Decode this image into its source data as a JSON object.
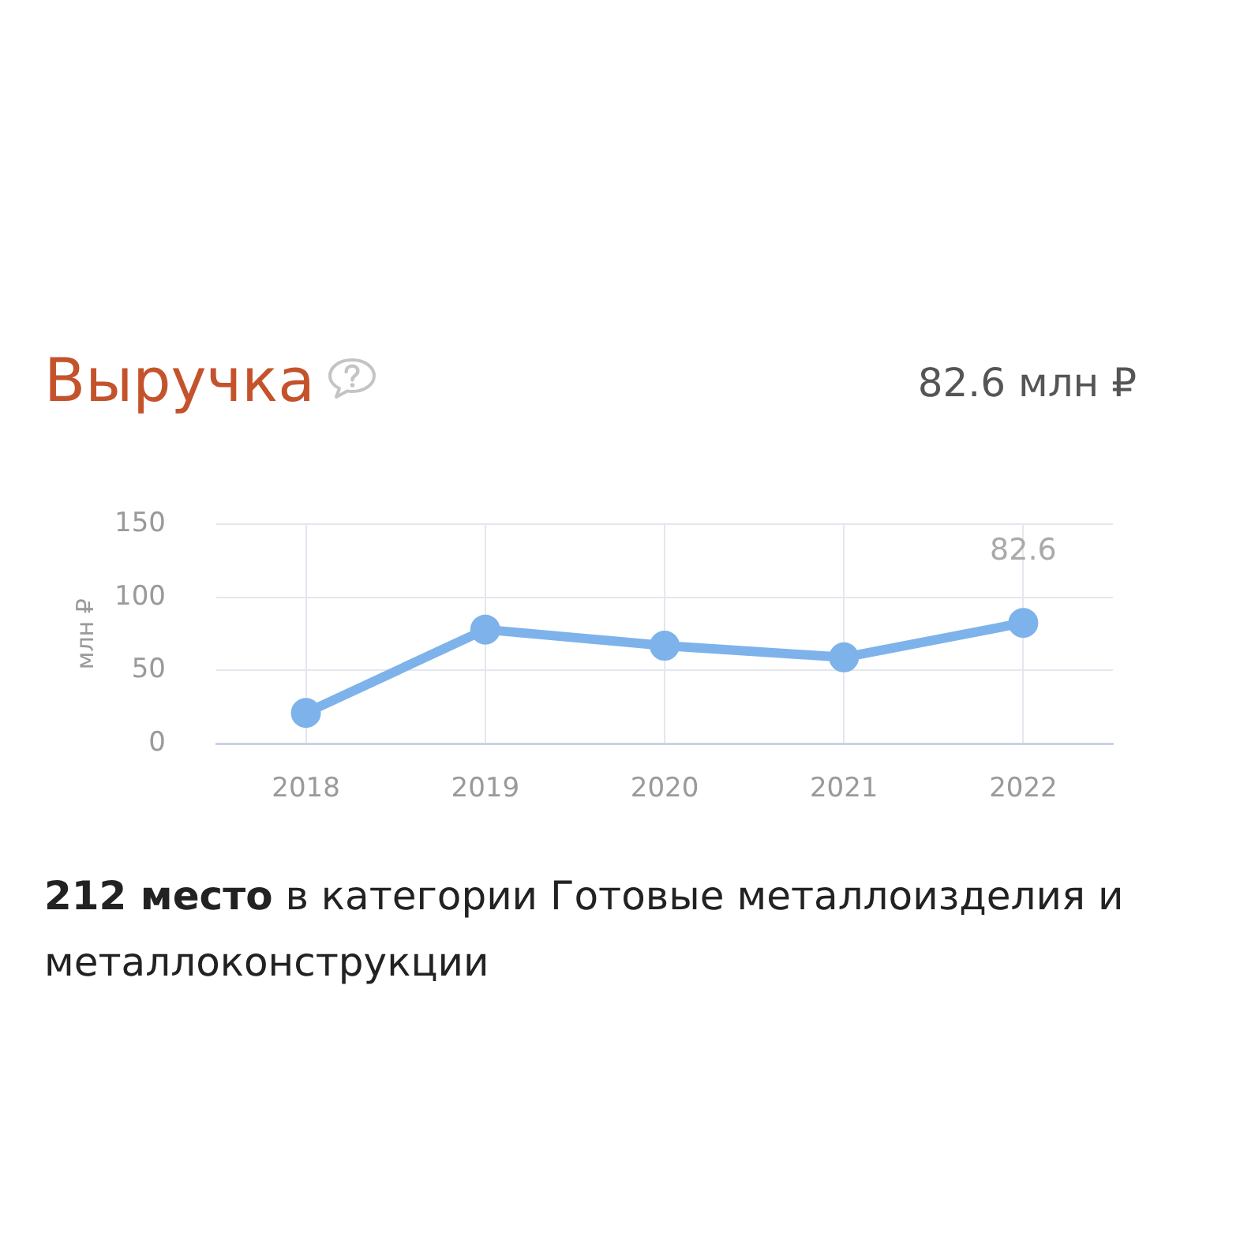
{
  "chart_data": {
    "type": "line",
    "title": "Выручка",
    "subtitle": "82.6 млн ₽",
    "ylabel": "млн ₽",
    "categories": [
      "2018",
      "2019",
      "2020",
      "2021",
      "2022"
    ],
    "series": [
      {
        "color": "#7eb2ea",
        "values": [
          21,
          78,
          67,
          59,
          82.6
        ],
        "value_labels": [
          null,
          null,
          null,
          null,
          "82.6"
        ]
      }
    ],
    "ylim": [
      0,
      150
    ],
    "yticks": [
      0,
      50,
      100,
      150
    ],
    "grid": true,
    "marker": "circle",
    "annotations": [
      "212 место в категории Готовые металлоизделия и металлоконструкции"
    ]
  }
}
